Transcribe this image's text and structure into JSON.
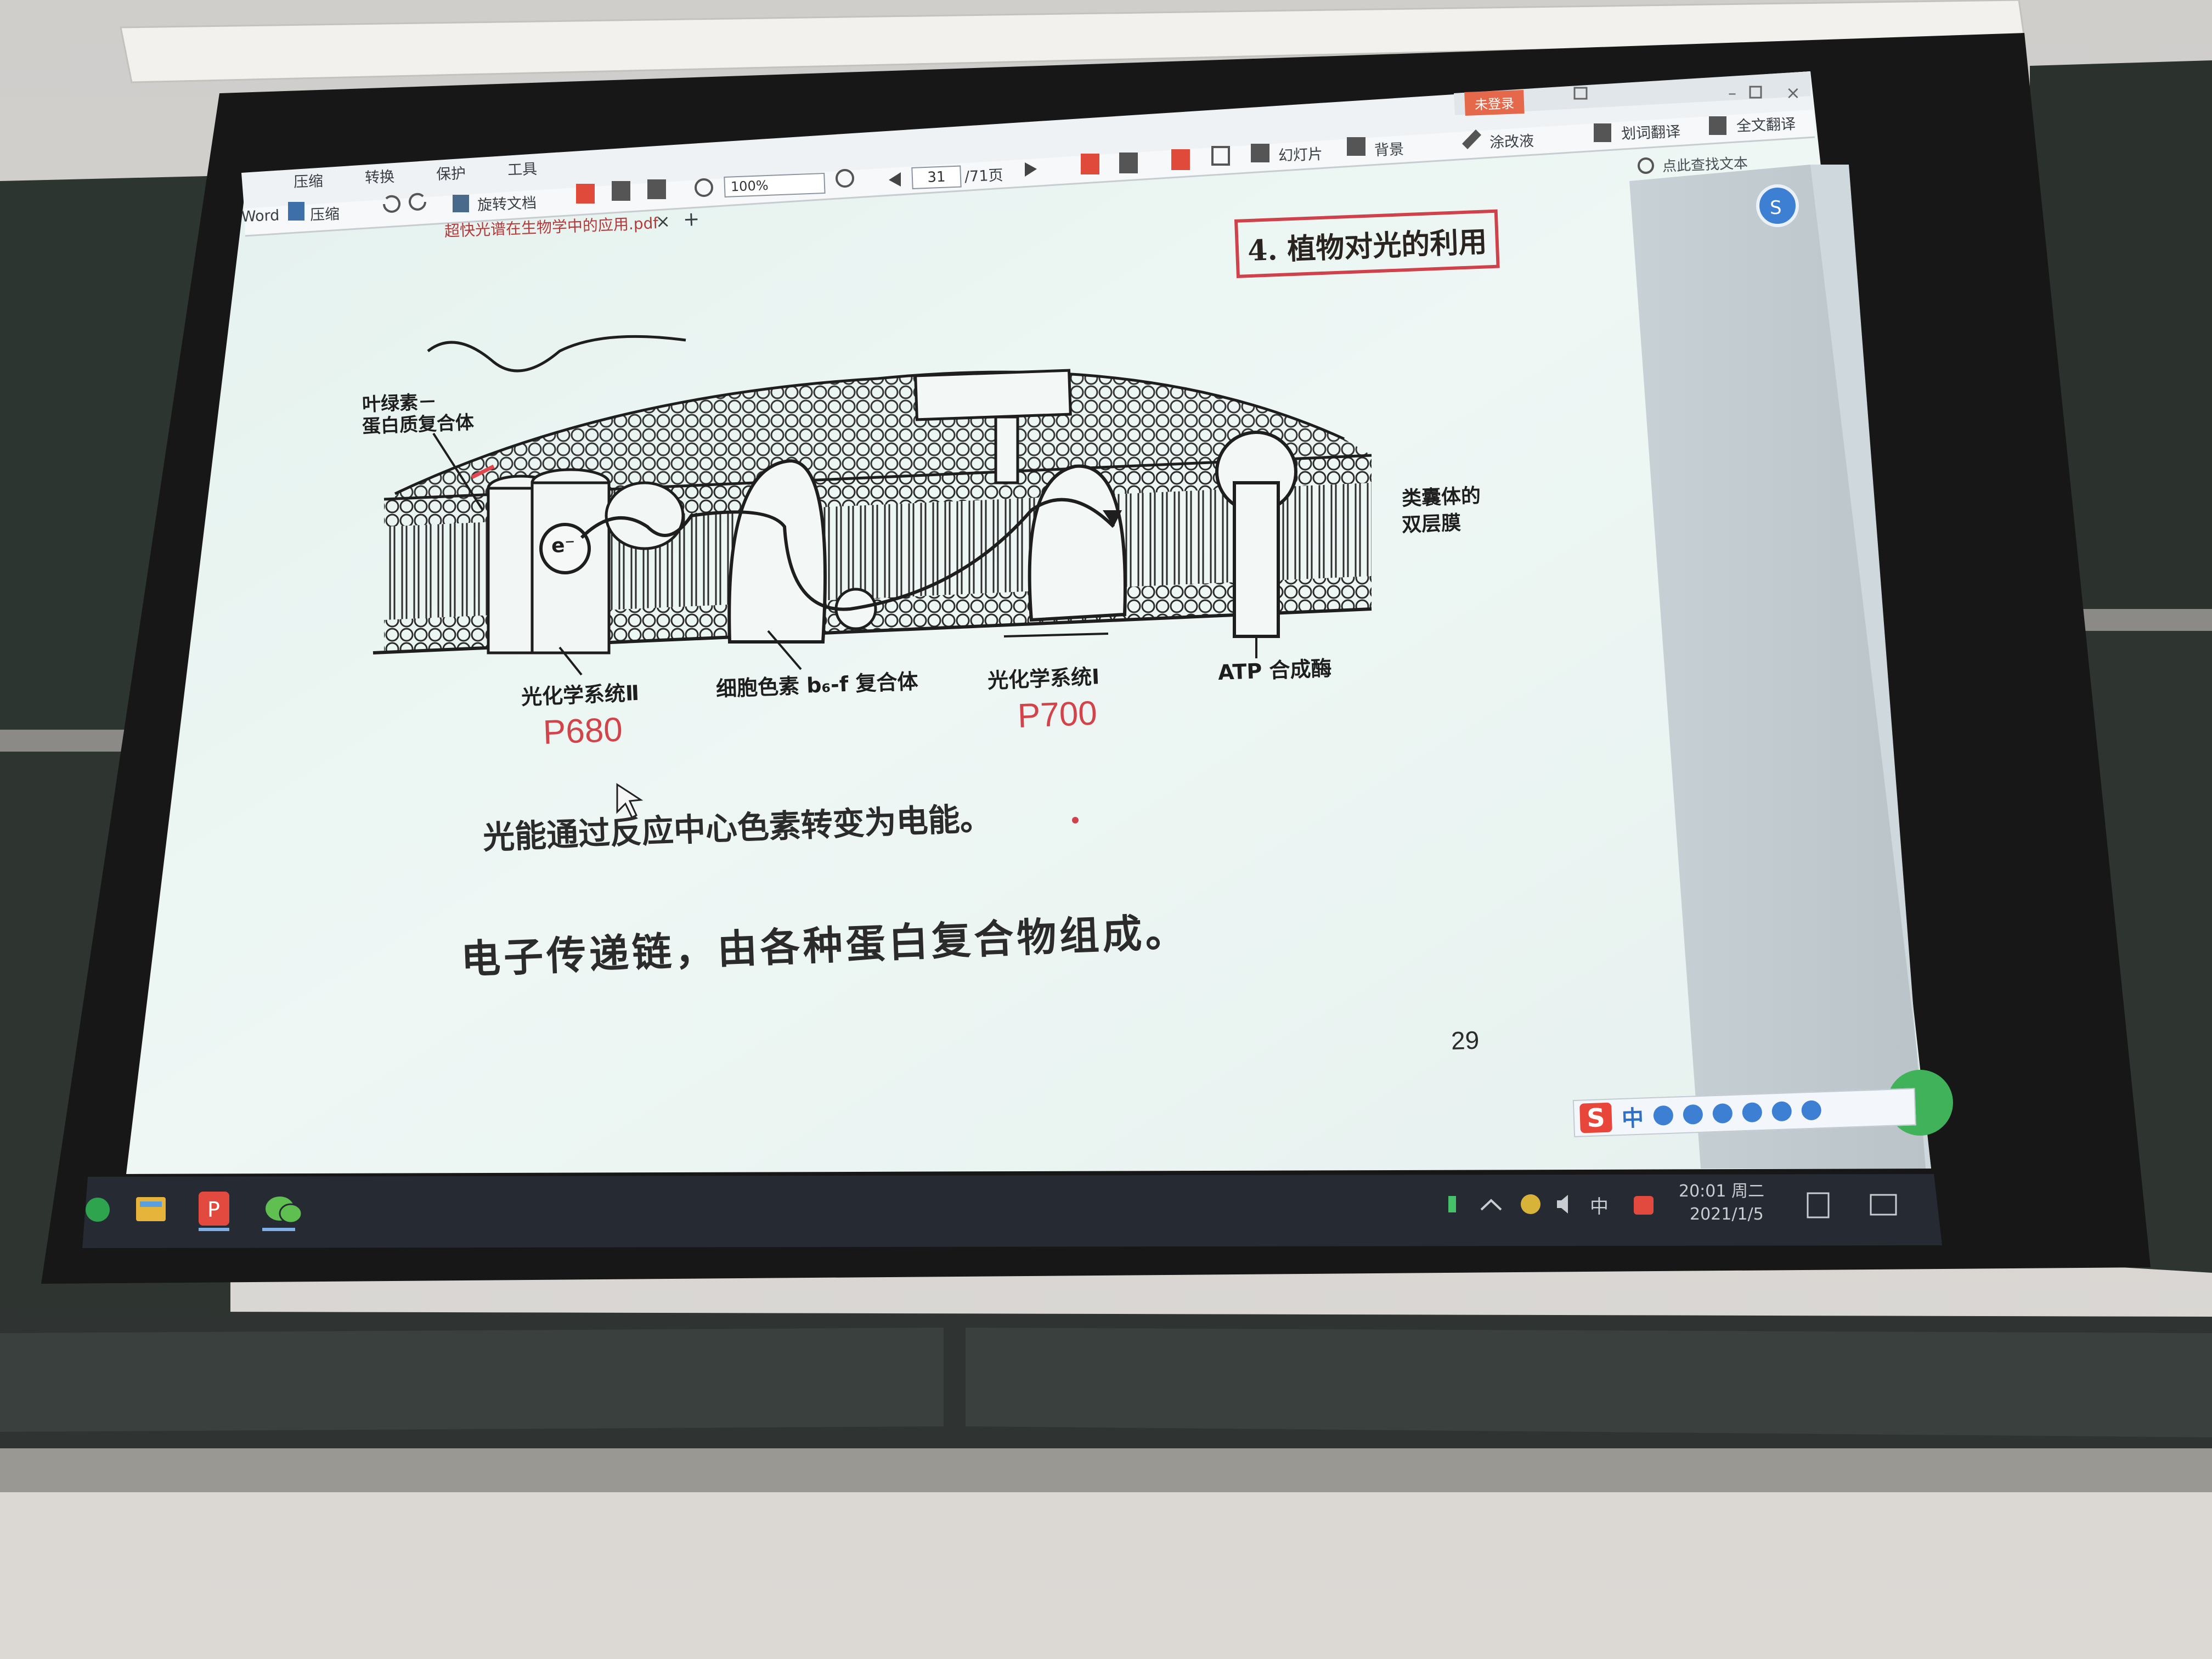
{
  "reader": {
    "menu_tabs": [
      "压缩",
      "转换",
      "保护",
      "工具"
    ],
    "toolbar": {
      "word_label": "Word",
      "compress_label": "压缩",
      "rotate_label": "旋转文档",
      "zoom_value": "100%",
      "current_page": "31",
      "total_pages": "/71页",
      "slideshow_label": "幻灯片",
      "background_label": "背景",
      "annotate_label": "涂改液",
      "word_translate_label": "划词翻译",
      "full_translate_label": "全文翻译",
      "search_placeholder": "点此查找文本"
    },
    "login_label": "未登录",
    "tab": {
      "title": "超快光谱在生物学中的应用.pdf",
      "close_glyph": "×",
      "new_tab_glyph": "+"
    }
  },
  "slide": {
    "title": "4. 植物对光的利用",
    "diagram": {
      "label_complex": "叶绿素－蛋白质复合体",
      "label_complex_line1": "叶绿素－",
      "label_complex_line2": "蛋白质复合体",
      "label_membrane_line1": "类囊体的",
      "label_membrane_line2": "双层膜",
      "label_ps2": "光化学系统Ⅱ",
      "label_cyt": "细胞色素 b₆-f 复合体",
      "label_ps1": "光化学系统Ⅰ",
      "label_atp": "ATP 合成酶",
      "electron_symbol": "e⁻",
      "p680": "P680",
      "p700": "P700"
    },
    "text1": "光能通过反应中心色素转变为电能。",
    "text2": "电子传递链，由各种蛋白复合物组成。",
    "page_number": "29"
  },
  "taskbar": {
    "tray_ime": "中",
    "time": "20:01 周二",
    "date": "2021/1/5"
  },
  "ime": {
    "logo": "S",
    "mode": "中"
  },
  "colors": {
    "wall": "#d9d6d2",
    "chalkboard": "#2c332e",
    "screen_frame": "#1b1b1b",
    "slide_bg": "#e8f3ef",
    "accent_red": "#d0424b",
    "taskbar": "#252a31"
  }
}
